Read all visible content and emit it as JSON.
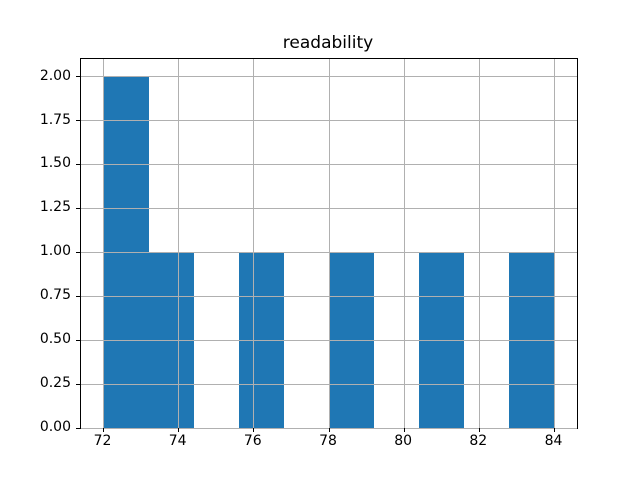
{
  "figure": {
    "background": "#ffffff"
  },
  "chart_data": {
    "type": "bar",
    "subtype": "histogram",
    "title": "readability",
    "xlabel": "",
    "ylabel": "",
    "bin_edges": [
      72,
      73.2,
      74.4,
      75.6,
      76.8,
      78,
      79.2,
      80.4,
      81.6,
      82.8,
      84
    ],
    "counts": [
      2,
      1,
      0,
      1,
      0,
      1,
      0,
      1,
      0,
      1
    ],
    "xlim": [
      71.4,
      84.6
    ],
    "ylim": [
      0,
      2.1
    ],
    "x_ticks": [
      72,
      74,
      76,
      78,
      80,
      82,
      84
    ],
    "x_tick_labels": [
      "72",
      "74",
      "76",
      "78",
      "80",
      "82",
      "84"
    ],
    "y_ticks": [
      0,
      0.25,
      0.5,
      0.75,
      1.0,
      1.25,
      1.5,
      1.75,
      2.0
    ],
    "y_tick_labels": [
      "0.00",
      "0.25",
      "0.50",
      "0.75",
      "1.00",
      "1.25",
      "1.50",
      "1.75",
      "2.00"
    ],
    "grid": true,
    "grid_above_bars": true,
    "legend": false,
    "bar_color": "#1f77b4",
    "grid_color": "#b0b0b0",
    "axis_color": "#000000",
    "text_color": "#000000"
  }
}
